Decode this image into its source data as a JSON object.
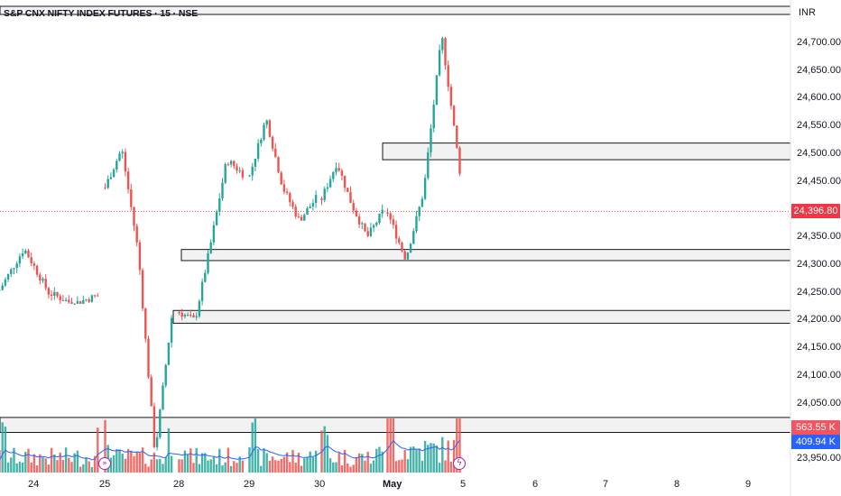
{
  "header": {
    "title": "S&P CNX NIFTY INDEX FUTURES · 15 · NSE",
    "currency": "INR"
  },
  "price_scale": {
    "ticks": [
      "24,700.00",
      "24,650.00",
      "24,600.00",
      "24,550.00",
      "24,500.00",
      "24,450.00",
      "24,350.00",
      "24,300.00",
      "24,250.00",
      "24,200.00",
      "24,150.00",
      "24,100.00",
      "24,050.00",
      "23,950.00"
    ],
    "last_price_label": "24,396.80",
    "volume_label": "563.55 K",
    "volume_ma_label": "409.94 K"
  },
  "time_scale": {
    "labels": [
      "24",
      "25",
      "28",
      "29",
      "30",
      "May",
      "5",
      "6",
      "7",
      "8",
      "9"
    ]
  },
  "colors": {
    "up": "#26a69a",
    "down": "#ef5350",
    "volume_up": "#26a69a",
    "volume_down": "#ef5350",
    "volume_ma": "#2962ff",
    "last_price_line": "#ef5350",
    "last_price_badge": "#f23645",
    "volume_badge": "#f7525f",
    "volume_ma_badge": "#2962ff",
    "zone_border": "#131722",
    "zone_fill": "#f2f2f2",
    "event_marker": "#9c27b0"
  },
  "event_icons": [
    "double-chevron-right-icon",
    "lightning-icon"
  ],
  "chart_data": {
    "type": "candlestick",
    "title": "S&P CNX NIFTY INDEX FUTURES · 15 · NSE",
    "currency": "INR",
    "ylim": [
      23930,
      24760
    ],
    "grid": false,
    "last_price": 24396.8,
    "sessions": [
      "24",
      "25",
      "28",
      "29",
      "30",
      "May",
      "5"
    ],
    "future_dates": [
      "6",
      "7",
      "8",
      "9"
    ],
    "zones": [
      {
        "low": 24490,
        "high": 24520
      },
      {
        "low": 24308,
        "high": 24328
      },
      {
        "low": 24195,
        "high": 24218
      },
      {
        "low": 23998,
        "high": 24025
      }
    ],
    "sessions_ohlc": [
      {
        "session": "24",
        "open": 24255,
        "high": 24330,
        "low": 24230,
        "close": 24245
      },
      {
        "session": "25",
        "open": 24440,
        "high": 24510,
        "low": 23960,
        "close": 24205
      },
      {
        "session": "28",
        "open": 24215,
        "high": 24490,
        "low": 24200,
        "close": 24465
      },
      {
        "session": "29",
        "open": 24460,
        "high": 24565,
        "low": 24380,
        "close": 24420
      },
      {
        "session": "30",
        "open": 24420,
        "high": 24485,
        "low": 24350,
        "close": 24395
      },
      {
        "session": "May",
        "open": 24395,
        "high": 24715,
        "low": 24310,
        "close": 24470
      },
      {
        "session": "5",
        "open": 24470,
        "high": 24490,
        "low": 24350,
        "close": 24396.8
      }
    ],
    "volume": {
      "last": "563.55 K",
      "ma": "409.94 K"
    }
  }
}
